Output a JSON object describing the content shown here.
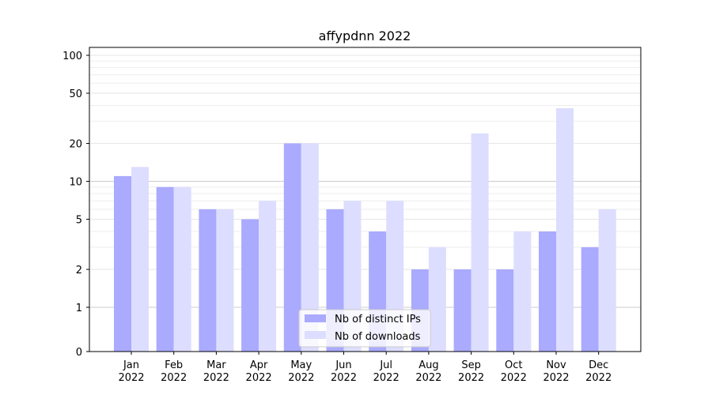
{
  "chart_data": {
    "type": "bar",
    "title": "affypdnn 2022",
    "categories": [
      "Jan",
      "Feb",
      "Mar",
      "Apr",
      "May",
      "Jun",
      "Jul",
      "Aug",
      "Sep",
      "Oct",
      "Nov",
      "Dec"
    ],
    "category_sublabel": "2022",
    "y_scale": "symlog",
    "y_ticks": [
      0,
      1,
      2,
      5,
      10,
      20,
      50,
      100
    ],
    "grid": true,
    "legend_position": "bottom-center",
    "series": [
      {
        "name": "Nb of distinct IPs",
        "color": "#aaaaff",
        "values": [
          11,
          9,
          6,
          5,
          20,
          6,
          4,
          2,
          2,
          2,
          4,
          3
        ]
      },
      {
        "name": "Nb of downloads",
        "color": "#ddddff",
        "values": [
          13,
          9,
          6,
          7,
          20,
          7,
          7,
          3,
          24,
          4,
          38,
          6
        ]
      }
    ]
  }
}
